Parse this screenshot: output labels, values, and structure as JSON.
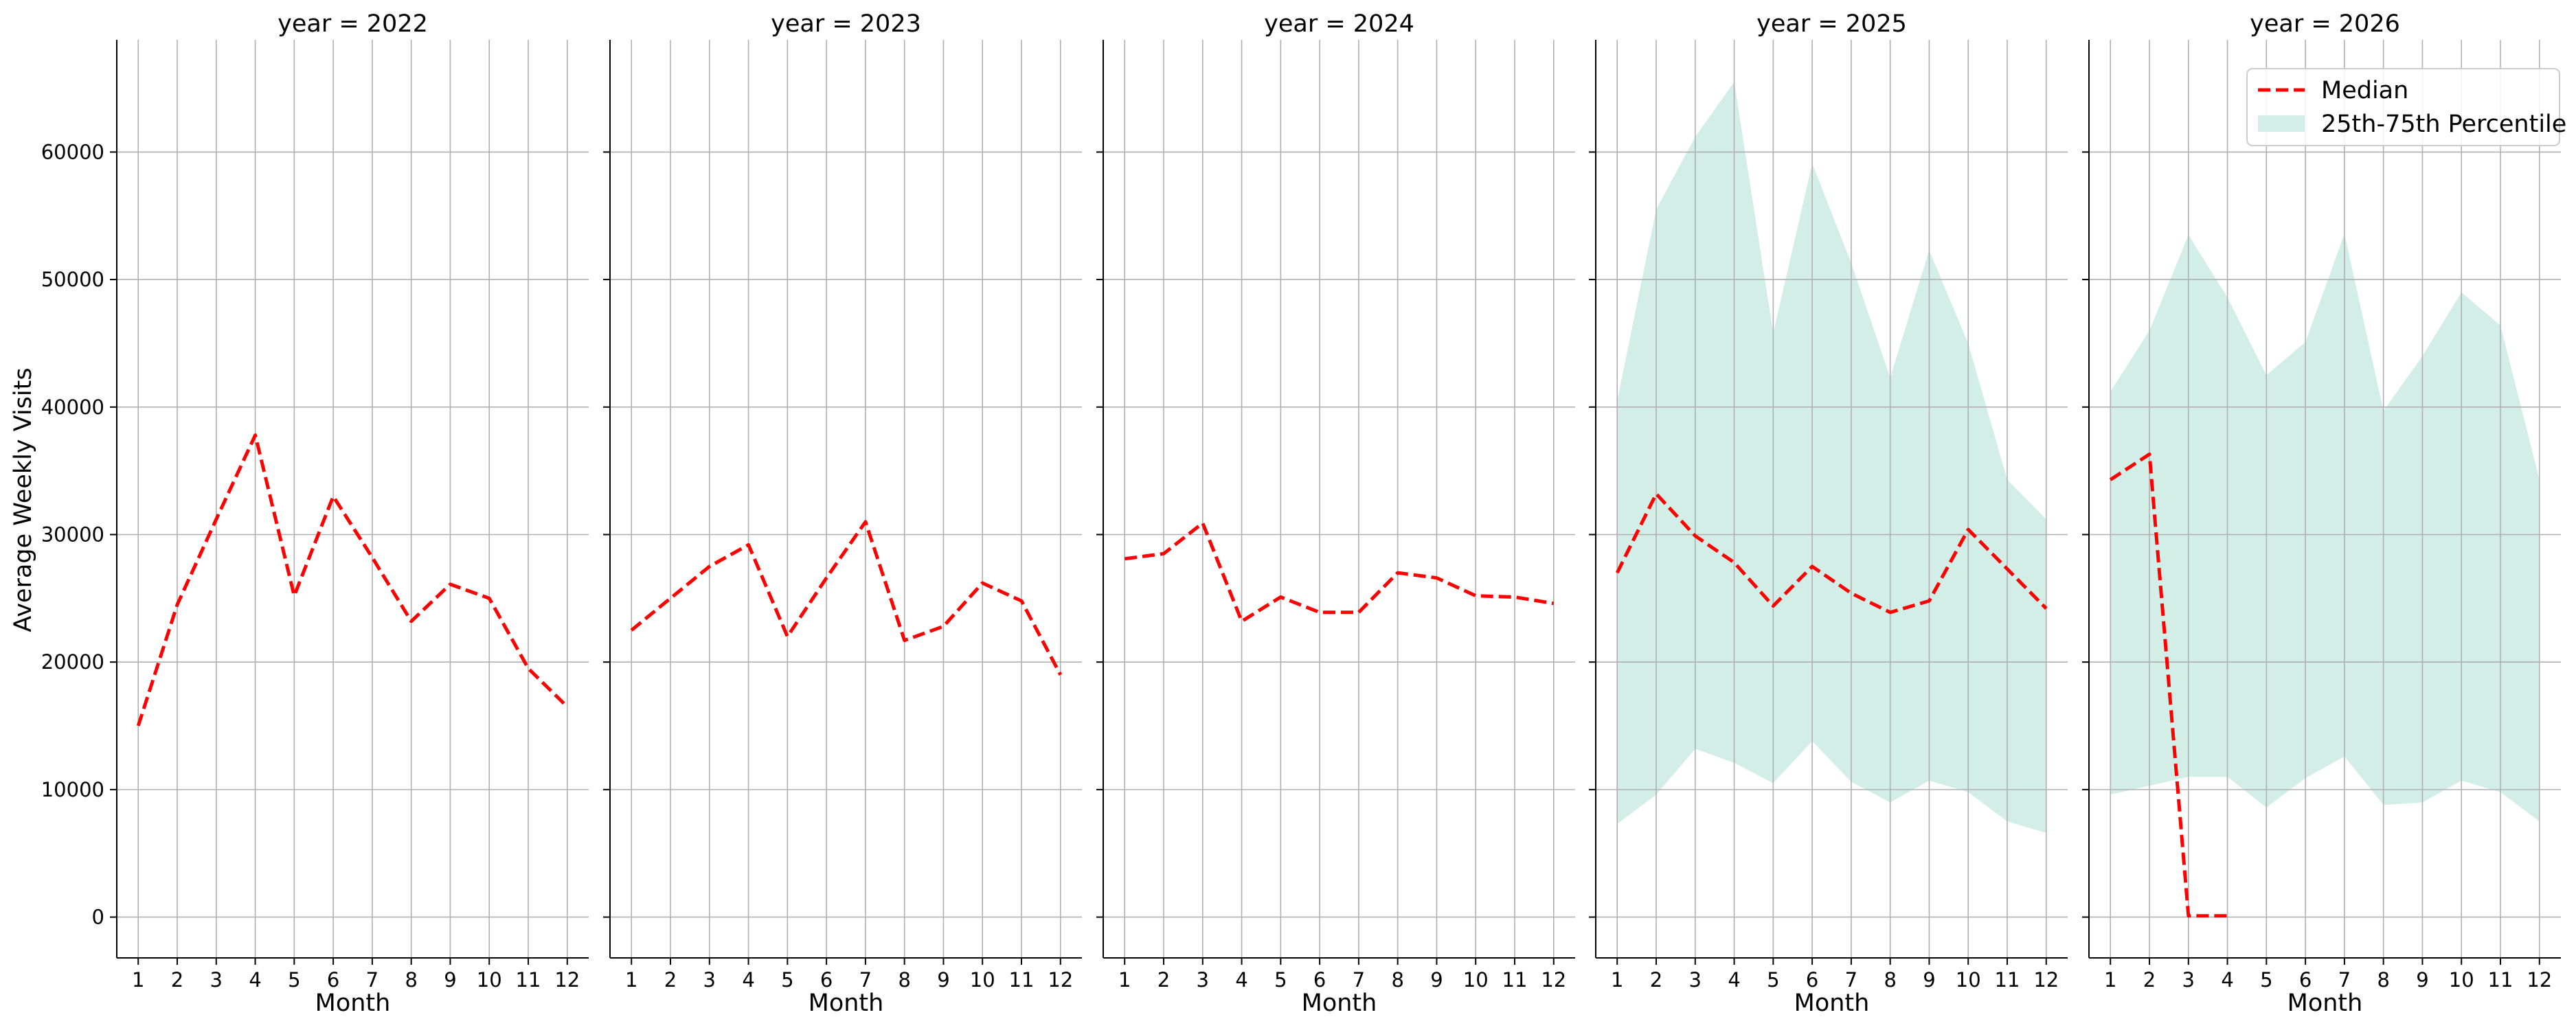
{
  "chart_data": {
    "type": "line",
    "layout": "small-multiples",
    "facet_label": "year",
    "title_template": "year = {year}",
    "xlabel": "Month",
    "ylabel": "Average Weekly Visits",
    "ylim": [
      -3200,
      68800
    ],
    "xlim": [
      0.45,
      12.55
    ],
    "yticks": [
      0,
      10000,
      20000,
      30000,
      40000,
      50000,
      60000
    ],
    "xticks": [
      1,
      2,
      3,
      4,
      5,
      6,
      7,
      8,
      9,
      10,
      11,
      12
    ],
    "grid": true,
    "legend": {
      "placement": "top-right",
      "entries": [
        "Median",
        "25th-75th Percentile"
      ]
    },
    "colors": {
      "median": "#ff0000",
      "band": "#d3eee6",
      "grid": "#b0b0b0"
    },
    "panels": [
      {
        "year": "2022",
        "title": "year = 2022",
        "median": {
          "x": [
            1,
            2,
            3,
            4,
            5,
            6,
            7,
            8,
            9,
            10,
            11,
            12
          ],
          "y": [
            15000,
            24500,
            31200,
            37800,
            25200,
            33000,
            28200,
            23200,
            26100,
            25000,
            19500,
            16500
          ]
        },
        "band": null
      },
      {
        "year": "2023",
        "title": "year = 2023",
        "median": {
          "x": [
            1,
            2,
            3,
            4,
            5,
            6,
            7,
            8,
            9,
            10,
            11,
            12
          ],
          "y": [
            22500,
            25000,
            27500,
            29200,
            22000,
            26600,
            31000,
            21700,
            22800,
            26200,
            24800,
            19000
          ]
        },
        "band": null
      },
      {
        "year": "2024",
        "title": "year = 2024",
        "median": {
          "x": [
            1,
            2,
            3,
            4,
            5,
            6,
            7,
            8,
            9,
            10,
            11,
            12
          ],
          "y": [
            28100,
            28500,
            30900,
            23200,
            25100,
            23900,
            23900,
            27000,
            26600,
            25200,
            25100,
            24600
          ]
        },
        "band": null
      },
      {
        "year": "2025",
        "title": "year = 2025",
        "median": {
          "x": [
            1,
            2,
            3,
            4,
            5,
            6,
            7,
            8,
            9,
            10,
            11,
            12
          ],
          "y": [
            27000,
            33200,
            29900,
            27800,
            24400,
            27500,
            25400,
            23900,
            24800,
            30400,
            27300,
            24200
          ]
        },
        "band": {
          "x": [
            1,
            2,
            3,
            4,
            5,
            6,
            7,
            8,
            9,
            10,
            11,
            12
          ],
          "low": [
            7300,
            9600,
            13200,
            12100,
            10500,
            13800,
            10600,
            9000,
            10700,
            9800,
            7500,
            6600
          ],
          "high": [
            40500,
            55500,
            61200,
            65500,
            45800,
            59100,
            51300,
            42300,
            52300,
            45000,
            34300,
            31200
          ]
        }
      },
      {
        "year": "2026",
        "title": "year = 2026",
        "median": {
          "x": [
            1,
            2,
            3,
            4
          ],
          "y": [
            34300,
            36300,
            100,
            100
          ]
        },
        "band": {
          "x": [
            1,
            2,
            3,
            4,
            5,
            6,
            7,
            8,
            9,
            10,
            11,
            12
          ],
          "low": [
            9600,
            10300,
            11000,
            11000,
            8600,
            10900,
            12600,
            8800,
            9000,
            10700,
            9800,
            7500
          ],
          "high": [
            41200,
            46000,
            53500,
            48600,
            42500,
            45100,
            53600,
            39700,
            44000,
            49000,
            46400,
            34300
          ]
        }
      }
    ]
  }
}
